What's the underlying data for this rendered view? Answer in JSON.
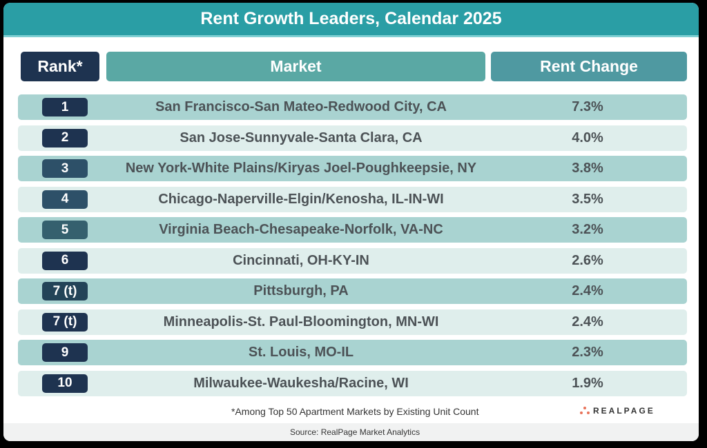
{
  "title": "Rent Growth Leaders, Calendar 2025",
  "headers": {
    "rank": "Rank*",
    "market": "Market",
    "change": "Rent Change"
  },
  "rows": [
    {
      "rank": "1",
      "market": "San Francisco-San Mateo-Redwood City, CA",
      "change": "7.3%",
      "pill": "#1e3350"
    },
    {
      "rank": "2",
      "market": "San Jose-Sunnyvale-Santa Clara, CA",
      "change": "4.0%",
      "pill": "#1e3350"
    },
    {
      "rank": "3",
      "market": "New York-White Plains/Kiryas Joel-Poughkeepsie, NY",
      "change": "3.8%",
      "pill": "#2d5068"
    },
    {
      "rank": "4",
      "market": "Chicago-Naperville-Elgin/Kenosha, IL-IN-WI",
      "change": "3.5%",
      "pill": "#2d5068"
    },
    {
      "rank": "5",
      "market": "Virginia Beach-Chesapeake-Norfolk, VA-NC",
      "change": "3.2%",
      "pill": "#35606e"
    },
    {
      "rank": "6",
      "market": "Cincinnati, OH-KY-IN",
      "change": "2.6%",
      "pill": "#1e3350"
    },
    {
      "rank": "7 (t)",
      "market": "Pittsburgh, PA",
      "change": "2.4%",
      "pill": "#234358"
    },
    {
      "rank": "7 (t)",
      "market": "Minneapolis-St. Paul-Bloomington, MN-WI",
      "change": "2.4%",
      "pill": "#1e3350"
    },
    {
      "rank": "9",
      "market": "St. Louis, MO-IL",
      "change": "2.3%",
      "pill": "#1e3350"
    },
    {
      "rank": "10",
      "market": "Milwaukee-Waukesha/Racine, WI",
      "change": "1.9%",
      "pill": "#1e3350"
    }
  ],
  "footnote": "*Among Top 50 Apartment Markets by Existing Unit Count",
  "logo": "REALPAGE",
  "source": "Source: RealPage Market Analytics",
  "chart_data": {
    "type": "table",
    "title": "Rent Growth Leaders, Calendar 2025",
    "columns": [
      "Rank*",
      "Market",
      "Rent Change"
    ],
    "rows": [
      [
        "1",
        "San Francisco-San Mateo-Redwood City, CA",
        "7.3%"
      ],
      [
        "2",
        "San Jose-Sunnyvale-Santa Clara, CA",
        "4.0%"
      ],
      [
        "3",
        "New York-White Plains/Kiryas Joel-Poughkeepsie, NY",
        "3.8%"
      ],
      [
        "4",
        "Chicago-Naperville-Elgin/Kenosha, IL-IN-WI",
        "3.5%"
      ],
      [
        "5",
        "Virginia Beach-Chesapeake-Norfolk, VA-NC",
        "3.2%"
      ],
      [
        "6",
        "Cincinnati, OH-KY-IN",
        "2.6%"
      ],
      [
        "7 (t)",
        "Pittsburgh, PA",
        "2.4%"
      ],
      [
        "7 (t)",
        "Minneapolis-St. Paul-Bloomington, MN-WI",
        "2.4%"
      ],
      [
        "9",
        "St. Louis, MO-IL",
        "2.3%"
      ],
      [
        "10",
        "Milwaukee-Waukesha/Racine, WI",
        "1.9%"
      ]
    ],
    "values": [
      7.3,
      4.0,
      3.8,
      3.5,
      3.2,
      2.6,
      2.4,
      2.4,
      2.3,
      1.9
    ],
    "footnote": "*Among Top 50 Apartment Markets by Existing Unit Count",
    "source": "Source: RealPage Market Analytics"
  }
}
